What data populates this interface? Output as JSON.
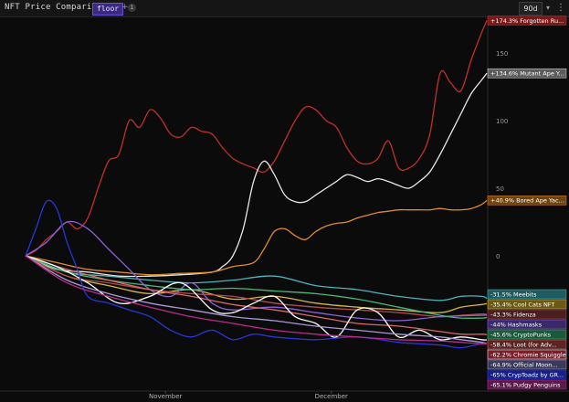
{
  "app": {
    "title": "NFT Price Comparison",
    "metric_chip": "floor",
    "add_label": "+",
    "badge": "1",
    "range": "90d",
    "range_chevron_icon": "chevron-down-icon",
    "more_icon": "more-vertical-icon"
  },
  "chart_data": {
    "type": "line",
    "xlabel": "",
    "ylabel": "",
    "x_ticks": [
      "November",
      "December"
    ],
    "y_ticks": [
      0,
      50,
      100,
      150
    ],
    "ylim": [
      -100,
      175
    ],
    "grid": false,
    "legend": "right (end-of-line value labels)",
    "series": [
      {
        "name": "Forgotten Ru...",
        "label": "+174.3% Forgotten Ru...",
        "color": "#c0302c",
        "label_bg": "#7a1a18",
        "x": [
          0,
          2,
          4,
          6,
          8,
          10,
          12,
          14,
          16,
          18,
          20,
          22,
          24,
          26,
          28,
          30,
          32,
          34,
          36,
          38,
          40,
          42,
          44,
          46,
          48,
          50,
          52,
          54,
          56,
          58,
          60,
          62,
          64,
          66,
          68,
          70,
          72,
          74,
          76,
          78,
          80,
          82,
          84,
          86,
          88,
          89
        ],
        "y": [
          0,
          4,
          12,
          18,
          25,
          20,
          28,
          50,
          70,
          75,
          100,
          95,
          108,
          102,
          90,
          88,
          95,
          92,
          90,
          80,
          72,
          68,
          65,
          62,
          70,
          85,
          100,
          110,
          108,
          100,
          95,
          80,
          70,
          68,
          72,
          85,
          65,
          65,
          72,
          90,
          135,
          128,
          122,
          145,
          165,
          174
        ]
      },
      {
        "name": "Mutant Ape Y...",
        "label": "+134.6% Mutant Ape Y...",
        "color": "#e6e6e6",
        "label_bg": "#5c5c5c",
        "x": [
          0,
          6,
          12,
          18,
          24,
          30,
          36,
          38,
          40,
          42,
          44,
          46,
          48,
          50,
          52,
          54,
          56,
          58,
          60,
          62,
          64,
          66,
          68,
          70,
          72,
          74,
          76,
          78,
          80,
          82,
          84,
          86,
          88,
          89
        ],
        "y": [
          0,
          -10,
          -12,
          -15,
          -15,
          -14,
          -12,
          -8,
          0,
          20,
          55,
          70,
          60,
          45,
          40,
          40,
          45,
          50,
          55,
          60,
          58,
          55,
          57,
          55,
          52,
          50,
          55,
          62,
          75,
          90,
          105,
          120,
          130,
          135
        ]
      },
      {
        "name": "Bored Ape Yac...",
        "label": "+40.9% Bored Ape Yac...",
        "color": "#e08a2e",
        "label_bg": "#6e4512",
        "x": [
          0,
          6,
          12,
          18,
          24,
          30,
          36,
          40,
          44,
          46,
          48,
          50,
          52,
          54,
          56,
          58,
          60,
          62,
          64,
          66,
          68,
          70,
          72,
          74,
          76,
          78,
          80,
          82,
          84,
          86,
          88,
          89
        ],
        "y": [
          0,
          -5,
          -10,
          -12,
          -14,
          -13,
          -12,
          -8,
          -5,
          5,
          18,
          20,
          15,
          12,
          18,
          22,
          24,
          25,
          28,
          30,
          32,
          33,
          34,
          34,
          34,
          34,
          35,
          34,
          34,
          35,
          38,
          41
        ]
      },
      {
        "name": "Meebits",
        "label": "-31.5% Meebits",
        "color": "#4fb3b8",
        "label_bg": "#1d5c60",
        "x": [
          0,
          8,
          16,
          24,
          32,
          40,
          48,
          56,
          64,
          72,
          80,
          84,
          88,
          89
        ],
        "y": [
          0,
          -12,
          -15,
          -18,
          -20,
          -18,
          -15,
          -22,
          -25,
          -30,
          -33,
          -30,
          -30,
          -31.5
        ]
      },
      {
        "name": "Cool Cats NFT",
        "label": "-35.4% Cool Cats NFT",
        "color": "#d4b64a",
        "label_bg": "#6a5a16",
        "x": [
          0,
          8,
          16,
          24,
          32,
          40,
          48,
          56,
          64,
          72,
          80,
          84,
          88,
          89
        ],
        "y": [
          0,
          -15,
          -22,
          -28,
          -25,
          -32,
          -30,
          -35,
          -38,
          -40,
          -42,
          -38,
          -36,
          -35.4
        ]
      },
      {
        "name": "Fidenza",
        "label": "-43.3% Fidenza",
        "color": "#b24c4c",
        "label_bg": "#4a1f1f",
        "x": [
          0,
          8,
          16,
          24,
          32,
          40,
          48,
          56,
          64,
          72,
          80,
          84,
          88,
          89
        ],
        "y": [
          0,
          -15,
          -20,
          -25,
          -28,
          -30,
          -35,
          -38,
          -40,
          -42,
          -45,
          -44,
          -43,
          -43.3
        ]
      },
      {
        "name": "Hashmasks",
        "label": "-44% Hashmasks",
        "color": "#8b63d8",
        "label_bg": "#3a2a6a",
        "x": [
          0,
          4,
          8,
          12,
          16,
          20,
          24,
          28,
          32,
          36,
          40,
          48,
          56,
          64,
          72,
          80,
          88,
          89
        ],
        "y": [
          0,
          10,
          25,
          20,
          5,
          -10,
          -25,
          -30,
          -20,
          -35,
          -40,
          -38,
          -42,
          -46,
          -48,
          -45,
          -44,
          -44
        ]
      },
      {
        "name": "CryptoPunks",
        "label": "-45.6% CryptoPunks",
        "color": "#46b87a",
        "label_bg": "#1a5a3a",
        "x": [
          0,
          8,
          16,
          24,
          32,
          40,
          48,
          56,
          64,
          72,
          80,
          84,
          88,
          89
        ],
        "y": [
          0,
          -12,
          -18,
          -22,
          -25,
          -24,
          -26,
          -28,
          -32,
          -38,
          -44,
          -46,
          -46,
          -45.6
        ]
      },
      {
        "name": "Loot (for Adv...",
        "label": "-58.4% Loot (for Adv...",
        "color": "#d86a6a",
        "label_bg": "#5c2424",
        "x": [
          0,
          8,
          16,
          24,
          32,
          40,
          48,
          56,
          64,
          72,
          80,
          84,
          88,
          89
        ],
        "y": [
          0,
          -10,
          -18,
          -25,
          -30,
          -36,
          -40,
          -45,
          -50,
          -52,
          -56,
          -58,
          -58,
          -58.4
        ]
      },
      {
        "name": "Chromie Squiggle",
        "label": "-62.2% Chromie Squiggle",
        "color": "#ffffff",
        "label_bg": "#7a1f2a",
        "x": [
          0,
          6,
          12,
          18,
          24,
          30,
          36,
          40,
          44,
          48,
          52,
          56,
          60,
          64,
          68,
          72,
          76,
          80,
          84,
          88,
          89
        ],
        "y": [
          0,
          -8,
          -20,
          -35,
          -30,
          -20,
          -40,
          -42,
          -35,
          -30,
          -45,
          -50,
          -60,
          -40,
          -42,
          -60,
          -55,
          -62,
          -60,
          -62,
          -62.2
        ]
      },
      {
        "name": "Official Moon...",
        "label": "-64.9% Official Moon...",
        "color": "#a89ad8",
        "label_bg": "#3a3a5a",
        "x": [
          0,
          8,
          16,
          24,
          32,
          40,
          48,
          56,
          64,
          72,
          80,
          84,
          88,
          89
        ],
        "y": [
          0,
          -18,
          -28,
          -35,
          -40,
          -45,
          -48,
          -52,
          -55,
          -58,
          -60,
          -62,
          -64,
          -64.9
        ]
      },
      {
        "name": "CrypToadz by GR...",
        "label": "-65% CrypToadz by GR...",
        "color": "#2a35d8",
        "label_bg": "#17208a",
        "x": [
          0,
          2,
          4,
          6,
          8,
          10,
          12,
          16,
          20,
          24,
          28,
          32,
          36,
          40,
          44,
          48,
          56,
          64,
          72,
          80,
          84,
          88,
          89
        ],
        "y": [
          0,
          20,
          40,
          35,
          10,
          -10,
          -30,
          -35,
          -40,
          -45,
          -55,
          -60,
          -55,
          -62,
          -58,
          -60,
          -62,
          -60,
          -64,
          -66,
          -68,
          -65,
          -65
        ]
      },
      {
        "name": "Pudgy Penguins",
        "label": "-65.1% Pudgy Penguins",
        "color": "#b82c8a",
        "label_bg": "#5a1a4a",
        "x": [
          0,
          8,
          16,
          24,
          32,
          40,
          48,
          56,
          64,
          72,
          80,
          84,
          88,
          89
        ],
        "y": [
          0,
          -20,
          -30,
          -38,
          -45,
          -50,
          -55,
          -58,
          -60,
          -62,
          -63,
          -64,
          -65,
          -65.1
        ]
      }
    ],
    "x_tick_positions": [
      27,
      59
    ],
    "x_range": [
      0,
      89
    ]
  }
}
